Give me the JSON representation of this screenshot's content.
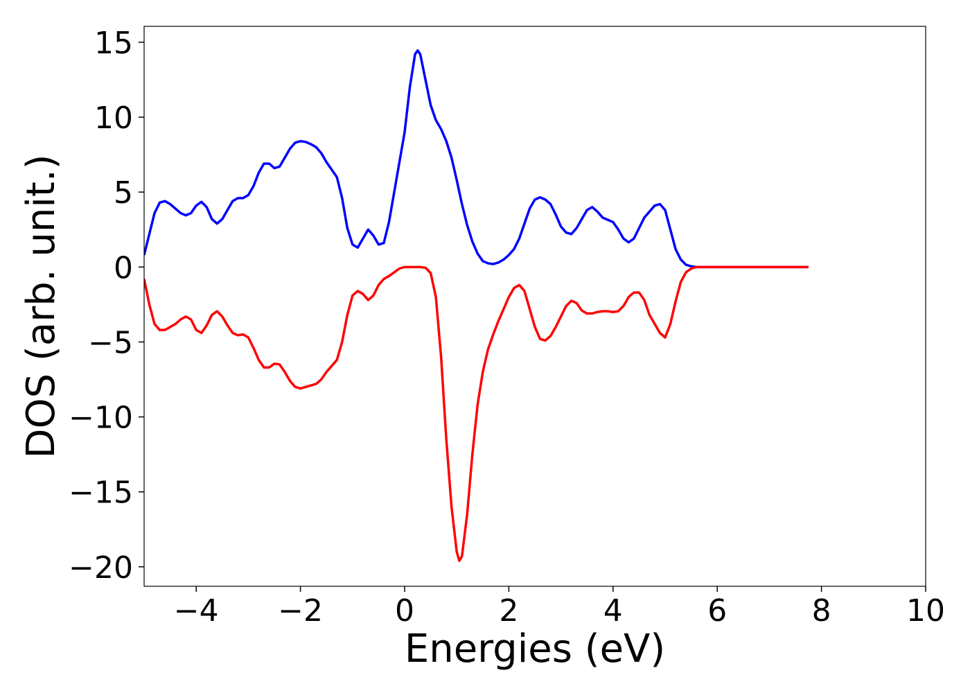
{
  "chart_data": {
    "type": "line",
    "xlabel": "Energies (eV)",
    "ylabel": "DOS (arb. unit.)",
    "xlim": [
      -5,
      10
    ],
    "ylim": [
      -21.3,
      16.06
    ],
    "xticks": [
      {
        "value": -4,
        "label": "−4"
      },
      {
        "value": -2,
        "label": "−2"
      },
      0,
      2,
      4,
      6,
      8,
      10
    ],
    "yticks": [
      {
        "value": -20,
        "label": "−20"
      },
      {
        "value": -15,
        "label": "−15"
      },
      {
        "value": -10,
        "label": "−10"
      },
      {
        "value": -5,
        "label": "−5"
      },
      0,
      5,
      10,
      15
    ],
    "grid": false,
    "x": [
      -5.0,
      -4.9,
      -4.8,
      -4.7,
      -4.6,
      -4.5,
      -4.4,
      -4.3,
      -4.2,
      -4.1,
      -4.0,
      -3.9,
      -3.8,
      -3.7,
      -3.6,
      -3.5,
      -3.4,
      -3.3,
      -3.2,
      -3.1,
      -3.0,
      -2.9,
      -2.8,
      -2.7,
      -2.6,
      -2.5,
      -2.4,
      -2.3,
      -2.2,
      -2.1,
      -2.0,
      -1.9,
      -1.8,
      -1.7,
      -1.6,
      -1.5,
      -1.4,
      -1.3,
      -1.2,
      -1.1,
      -1.0,
      -0.9,
      -0.8,
      -0.7,
      -0.6,
      -0.5,
      -0.4,
      -0.3,
      -0.2,
      -0.1,
      0.0,
      0.1,
      0.2,
      0.25,
      0.3,
      0.4,
      0.5,
      0.6,
      0.7,
      0.8,
      0.9,
      1.0,
      1.05,
      1.1,
      1.2,
      1.3,
      1.4,
      1.5,
      1.6,
      1.7,
      1.8,
      1.9,
      2.0,
      2.1,
      2.2,
      2.3,
      2.4,
      2.5,
      2.6,
      2.7,
      2.8,
      2.9,
      3.0,
      3.1,
      3.2,
      3.3,
      3.4,
      3.5,
      3.6,
      3.7,
      3.8,
      3.9,
      4.0,
      4.1,
      4.2,
      4.3,
      4.4,
      4.5,
      4.6,
      4.7,
      4.8,
      4.9,
      5.0,
      5.1,
      5.2,
      5.3,
      5.4,
      5.5,
      5.6,
      5.8,
      7.75
    ],
    "series": [
      {
        "color": "#0000ff",
        "values": [
          0.8,
          2.2,
          3.6,
          4.3,
          4.4,
          4.2,
          3.9,
          3.6,
          3.45,
          3.6,
          4.1,
          4.35,
          4.0,
          3.2,
          2.9,
          3.2,
          3.8,
          4.4,
          4.6,
          4.6,
          4.8,
          5.4,
          6.3,
          6.9,
          6.9,
          6.6,
          6.7,
          7.3,
          7.9,
          8.3,
          8.4,
          8.35,
          8.2,
          8.0,
          7.6,
          7.0,
          6.5,
          6.0,
          4.6,
          2.6,
          1.5,
          1.3,
          1.9,
          2.5,
          2.1,
          1.5,
          1.6,
          3.0,
          5.0,
          7.0,
          9.0,
          12.0,
          14.2,
          14.45,
          14.2,
          12.5,
          10.8,
          9.8,
          9.2,
          8.4,
          7.3,
          5.8,
          5.0,
          4.2,
          2.8,
          1.7,
          0.9,
          0.4,
          0.25,
          0.2,
          0.3,
          0.5,
          0.8,
          1.2,
          1.9,
          2.9,
          3.9,
          4.5,
          4.65,
          4.5,
          4.2,
          3.5,
          2.7,
          2.3,
          2.2,
          2.6,
          3.2,
          3.8,
          4.0,
          3.7,
          3.3,
          3.15,
          3.0,
          2.5,
          1.9,
          1.65,
          1.9,
          2.6,
          3.3,
          3.7,
          4.1,
          4.2,
          3.8,
          2.5,
          1.2,
          0.5,
          0.15,
          0.05,
          0,
          0,
          0
        ]
      },
      {
        "color": "#ff0000",
        "values": [
          -0.8,
          -2.5,
          -3.8,
          -4.2,
          -4.2,
          -4.0,
          -3.8,
          -3.5,
          -3.3,
          -3.5,
          -4.2,
          -4.4,
          -3.9,
          -3.2,
          -2.95,
          -3.3,
          -3.9,
          -4.4,
          -4.55,
          -4.5,
          -4.7,
          -5.4,
          -6.2,
          -6.7,
          -6.7,
          -6.45,
          -6.5,
          -7.0,
          -7.6,
          -8.0,
          -8.1,
          -8.0,
          -7.9,
          -7.8,
          -7.5,
          -7.0,
          -6.6,
          -6.2,
          -5.0,
          -3.2,
          -1.9,
          -1.6,
          -1.8,
          -2.2,
          -1.9,
          -1.2,
          -0.8,
          -0.6,
          -0.35,
          -0.1,
          0,
          0,
          0,
          0,
          0,
          -0.05,
          -0.4,
          -2.0,
          -6.0,
          -11.5,
          -16.0,
          -19.0,
          -19.6,
          -19.3,
          -16.5,
          -12.5,
          -9.2,
          -7.0,
          -5.5,
          -4.5,
          -3.6,
          -2.8,
          -2.0,
          -1.4,
          -1.2,
          -1.6,
          -2.8,
          -4.0,
          -4.8,
          -4.9,
          -4.6,
          -4.0,
          -3.3,
          -2.6,
          -2.25,
          -2.4,
          -2.9,
          -3.1,
          -3.1,
          -3.0,
          -2.95,
          -2.95,
          -3.0,
          -2.95,
          -2.6,
          -2.0,
          -1.7,
          -1.7,
          -2.2,
          -3.2,
          -3.8,
          -4.4,
          -4.7,
          -3.8,
          -2.3,
          -1.0,
          -0.35,
          -0.1,
          0,
          0,
          0
        ]
      }
    ]
  }
}
